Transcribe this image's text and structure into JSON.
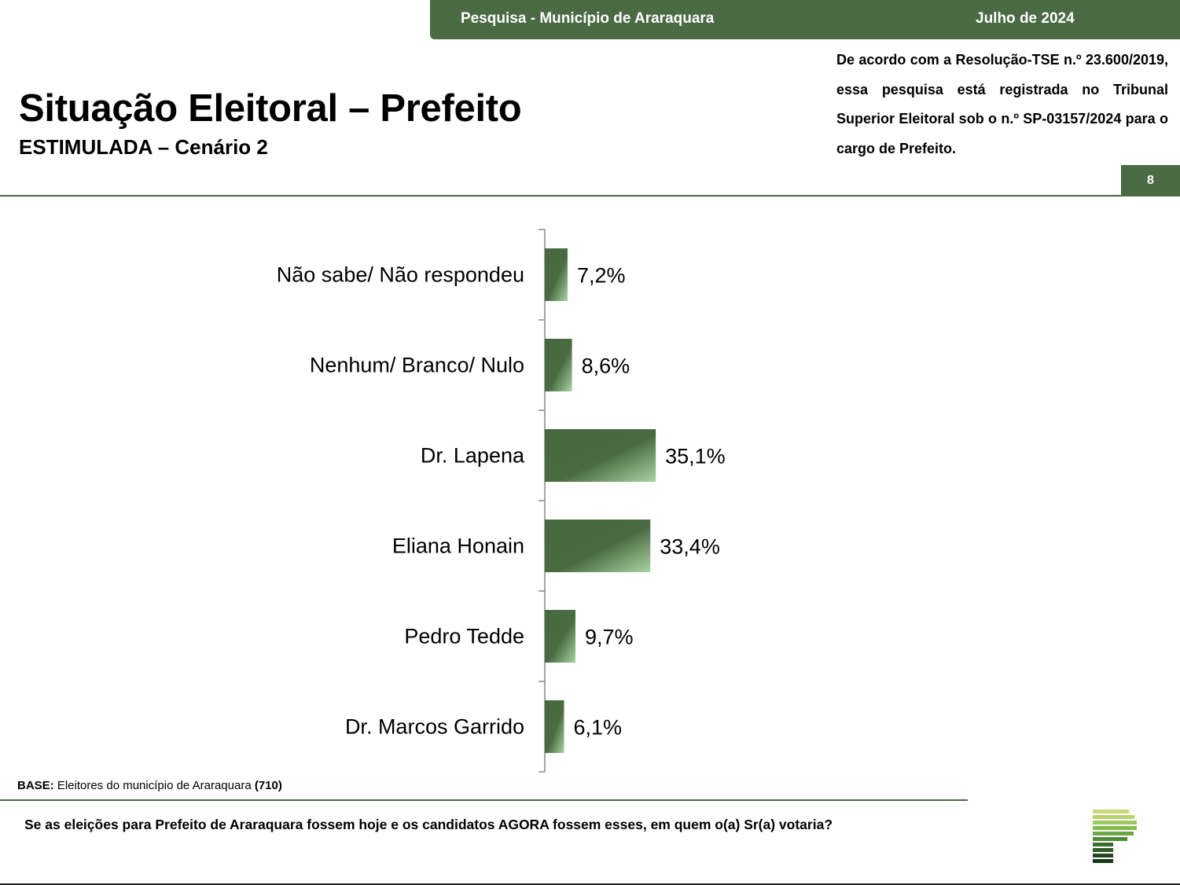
{
  "header": {
    "left_text": "Pesquisa - Município de Araraquara",
    "right_text": "Julho de 2024"
  },
  "legal_note": "De acordo com a Resolução-TSE n.º 23.600/2019, essa pesquisa está registrada no Tribunal Superior Eleitoral sob o n.º SP-03157/2024 para o cargo de Prefeito.",
  "title": "Situação Eleitoral – Prefeito",
  "subtitle": "ESTIMULADA – Cenário 2",
  "page_number": "8",
  "base": {
    "label": "BASE:",
    "text": "Eleitores do município de Araraquara",
    "count": "(710)"
  },
  "question": "Se as eleições para Prefeito de Araraquara fossem hoje e os candidatos AGORA fossem esses, em quem o(a) Sr(a) votaria?",
  "colors": {
    "brand_green": "#4a6a44",
    "bar_dark": "#47683f",
    "bar_light": "#a9d3a3"
  },
  "logo_icon": "striped-p-logo-icon",
  "chart_data": {
    "type": "bar",
    "orientation": "horizontal",
    "categories": [
      "Não sabe/ Não respondeu",
      "Nenhum/ Branco/ Nulo",
      "Dr. Lapena",
      "Eliana Honain",
      "Pedro Tedde",
      "Dr. Marcos Garrido"
    ],
    "values": [
      7.2,
      8.6,
      35.1,
      33.4,
      9.7,
      6.1
    ],
    "value_labels": [
      "7,2%",
      "8,6%",
      "35,1%",
      "33,4%",
      "9,7%",
      "6,1%"
    ],
    "unit": "%",
    "xlim": [
      0,
      100
    ],
    "grid": false,
    "legend": "none"
  }
}
